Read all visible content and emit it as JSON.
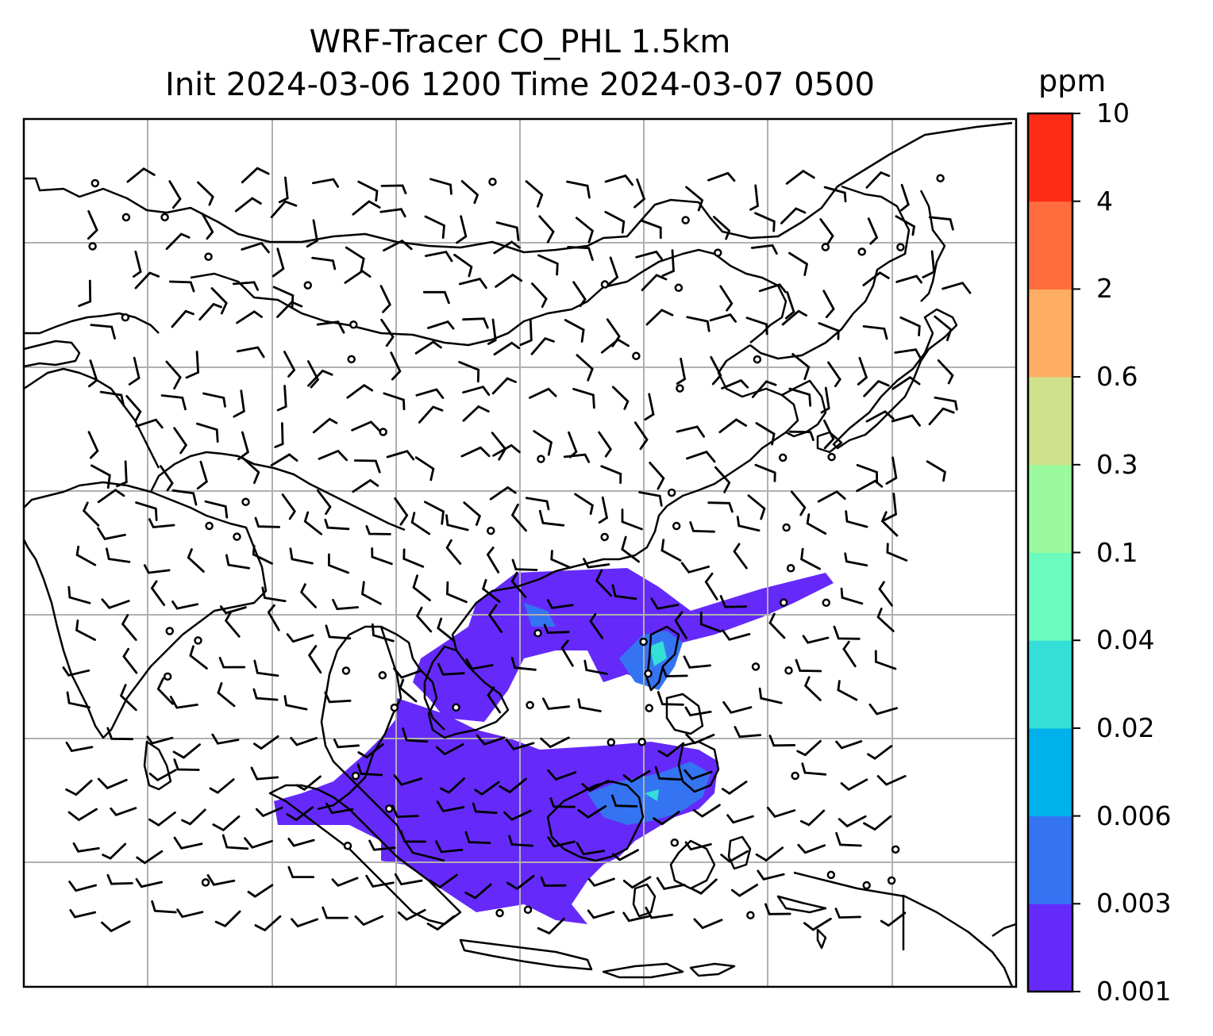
{
  "title": {
    "line1": "WRF-Tracer CO_PHL 1.5km",
    "line2": "Init 2024-03-06 1200 Time 2024-03-07 0500"
  },
  "colorbar": {
    "unit": "ppm",
    "levels": [
      "0.001",
      "0.003",
      "0.006",
      "0.02",
      "0.04",
      "0.1",
      "0.3",
      "0.6",
      "2",
      "4",
      "10"
    ],
    "colors": [
      "#652af9",
      "#3474f2",
      "#01b1eb",
      "#33dfd6",
      "#6cfbbe",
      "#9bfa9d",
      "#cfe18b",
      "#fdae62",
      "#fe6d3d",
      "#fe2c17"
    ]
  },
  "map": {
    "field": "CO tracer concentration",
    "gridline_color": "#b0b0b0",
    "coastline_color": "#000000",
    "wind_barb_color": "#000000"
  }
}
